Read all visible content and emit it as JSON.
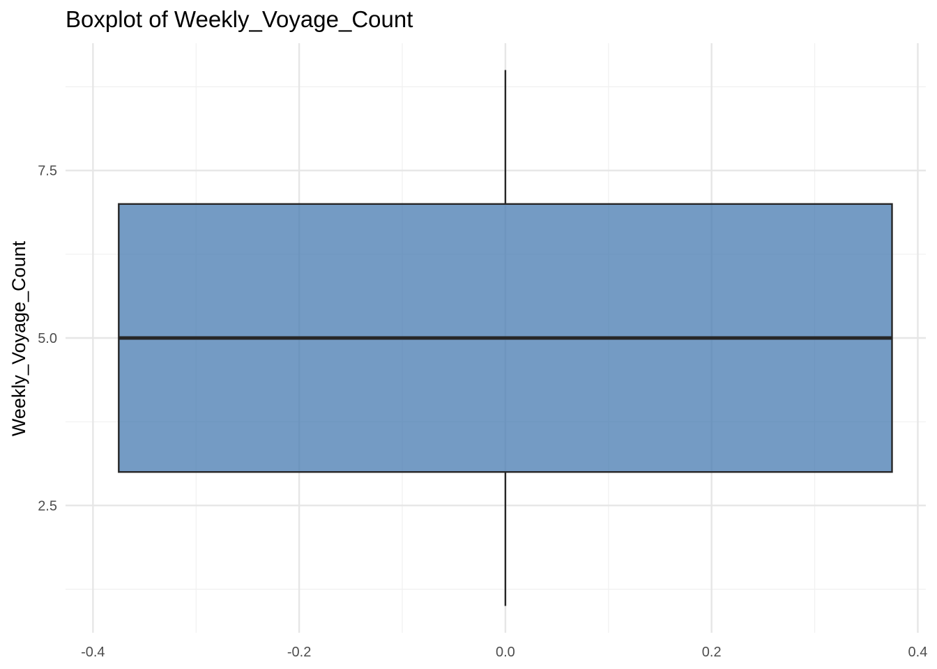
{
  "chart_data": {
    "type": "boxplot",
    "title": "Boxplot of Weekly_Voyage_Count",
    "xlabel": "",
    "ylabel": "Weekly_Voyage_Count",
    "x_ticks": [
      "-0.4",
      "-0.2",
      "0.0",
      "0.2",
      "0.4"
    ],
    "x_tick_values": [
      -0.4,
      -0.2,
      0.0,
      0.2,
      0.4
    ],
    "y_ticks": [
      "2.5",
      "5.0",
      "7.5"
    ],
    "y_tick_values": [
      2.5,
      5.0,
      7.5
    ],
    "xlim": [
      -0.4266,
      0.4078
    ],
    "ylim": [
      0.6,
      9.4
    ],
    "grid": true,
    "box": {
      "x_left": -0.375,
      "x_right": 0.375,
      "x_center": 0.0,
      "whisker_min": 1,
      "q1": 3,
      "median": 5,
      "q3": 7,
      "whisker_max": 9
    },
    "colors": {
      "box_fill": "#4679b0",
      "box_fill_opacity": 0.75,
      "box_stroke": "#262626",
      "grid_major": "#e6e6e6",
      "grid_minor": "#f0f0f0"
    }
  }
}
